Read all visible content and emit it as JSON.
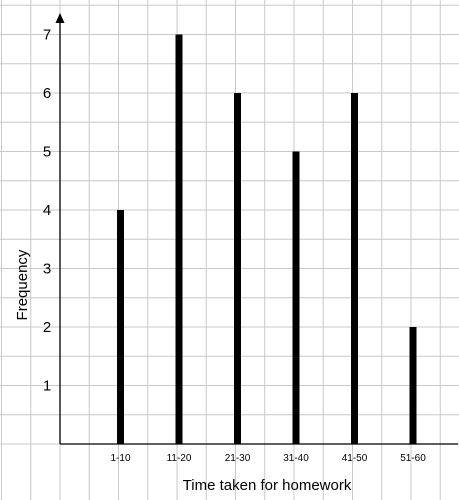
{
  "chart_data": {
    "type": "bar",
    "categories": [
      "1-10",
      "11-20",
      "21-30",
      "31-40",
      "41-50",
      "51-60"
    ],
    "values": [
      4,
      7,
      6,
      5,
      6,
      2
    ],
    "xlabel": "Time taken for homework",
    "ylabel": "Frequency",
    "yticks": [
      1,
      2,
      3,
      4,
      5,
      6,
      7
    ],
    "ylim": [
      0,
      7.5
    ],
    "grid": true,
    "colors": {
      "bar": "#000000",
      "grid": "#c8c8c8",
      "background": "#ffffff"
    }
  }
}
